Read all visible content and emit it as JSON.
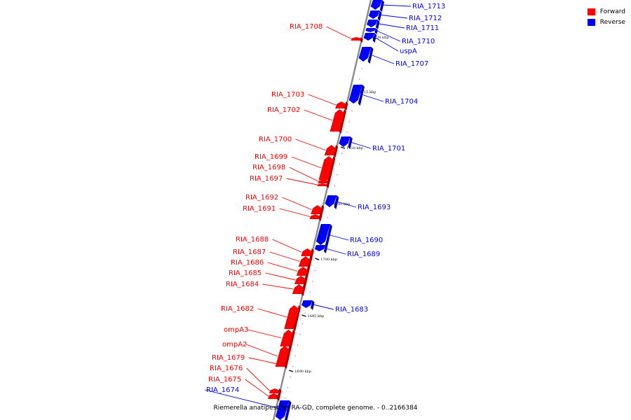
{
  "legend": {
    "forward_label": "Forward",
    "reverse_label": "Reverse",
    "forward_color": "#ff0000",
    "reverse_color": "#0000ff"
  },
  "caption": {
    "text": "Riemerella anatipestifer RA-GD, complete genome. - 0..2166384"
  },
  "ticks": [
    {
      "label": "1720 kbp"
    },
    {
      "label": "1715 kbp"
    },
    {
      "label": "1710 kbp"
    },
    {
      "label": "1705 kbp"
    },
    {
      "label": "1700 kbp"
    },
    {
      "label": "1695 kbp"
    },
    {
      "label": "1690 kbp"
    }
  ],
  "genes": [
    {
      "name": "RIA_1713",
      "strand": "reverse"
    },
    {
      "name": "RIA_1712",
      "strand": "reverse"
    },
    {
      "name": "RIA_1711",
      "strand": "reverse"
    },
    {
      "name": "RIA_1710",
      "strand": "reverse"
    },
    {
      "name": "uspA",
      "strand": "reverse"
    },
    {
      "name": "RIA_1708",
      "strand": "forward"
    },
    {
      "name": "RIA_1707",
      "strand": "reverse"
    },
    {
      "name": "RIA_1704",
      "strand": "reverse"
    },
    {
      "name": "RIA_1703",
      "strand": "forward"
    },
    {
      "name": "RIA_1702",
      "strand": "forward"
    },
    {
      "name": "RIA_1701",
      "strand": "reverse"
    },
    {
      "name": "RIA_1700",
      "strand": "forward"
    },
    {
      "name": "RIA_1699",
      "strand": "forward"
    },
    {
      "name": "RIA_1698",
      "strand": "forward"
    },
    {
      "name": "RIA_1697",
      "strand": "forward"
    },
    {
      "name": "RIA_1693",
      "strand": "reverse"
    },
    {
      "name": "RIA_1692",
      "strand": "forward"
    },
    {
      "name": "RIA_1691",
      "strand": "forward"
    },
    {
      "name": "RIA_1690",
      "strand": "reverse"
    },
    {
      "name": "RIA_1689",
      "strand": "reverse"
    },
    {
      "name": "RIA_1688",
      "strand": "forward"
    },
    {
      "name": "RIA_1687",
      "strand": "forward"
    },
    {
      "name": "RIA_1686",
      "strand": "forward"
    },
    {
      "name": "RIA_1685",
      "strand": "forward"
    },
    {
      "name": "RIA_1684",
      "strand": "forward"
    },
    {
      "name": "RIA_1683",
      "strand": "reverse"
    },
    {
      "name": "RIA_1682",
      "strand": "forward"
    },
    {
      "name": "ompA3",
      "strand": "forward"
    },
    {
      "name": "ompA2",
      "strand": "forward"
    },
    {
      "name": "RIA_1679",
      "strand": "forward"
    },
    {
      "name": "RIA_1676",
      "strand": "forward"
    },
    {
      "name": "RIA_1675",
      "strand": "forward"
    },
    {
      "name": "RIA_1674",
      "strand": "reverse"
    }
  ]
}
